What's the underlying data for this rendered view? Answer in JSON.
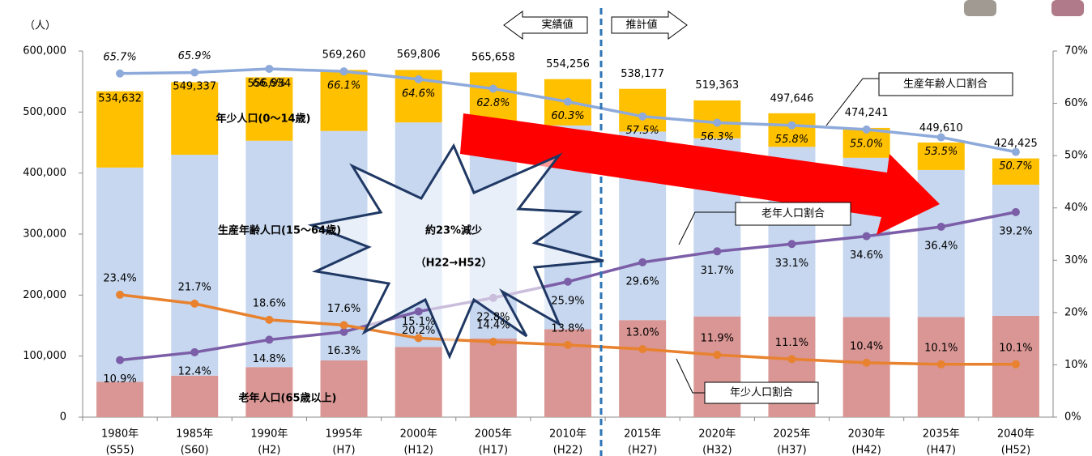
{
  "chart_data": {
    "type": "bar",
    "y_unit": "（人）",
    "categories": [
      "1980年",
      "1985年",
      "1990年",
      "1995年",
      "2000年",
      "2005年",
      "2010年",
      "2015年",
      "2020年",
      "2025年",
      "2030年",
      "2035年",
      "2040年"
    ],
    "era_labels": [
      "(S55)",
      "(S60)",
      "(H2)",
      "(H7)",
      "(H12)",
      "(H17)",
      "(H22)",
      "(H27)",
      "(H32)",
      "(H37)",
      "(H42)",
      "(H47)",
      "(H52)"
    ],
    "ylim": [
      0,
      600000
    ],
    "yticks": [
      0,
      {
        "value": 100000,
        "label": "100,000"
      },
      {
        "value": 200000,
        "label": "200,000"
      },
      {
        "value": 300000,
        "label": "300,000"
      },
      {
        "value": 400000,
        "label": "400,000"
      },
      {
        "value": 500000,
        "label": "500,000"
      },
      {
        "value": 600000,
        "label": "600,000"
      }
    ],
    "y2lim": [
      0,
      70
    ],
    "y2ticks": [
      {
        "value": 0,
        "label": "0%"
      },
      {
        "value": 10,
        "label": "10%"
      },
      {
        "value": 20,
        "label": "20%"
      },
      {
        "value": 30,
        "label": "30%"
      },
      {
        "value": 40,
        "label": "40%"
      },
      {
        "value": 50,
        "label": "50%"
      },
      {
        "value": 60,
        "label": "60%"
      },
      {
        "value": 70,
        "label": "70%"
      }
    ],
    "totals": [
      534632,
      549337,
      556934,
      569260,
      569806,
      565658,
      554256,
      538177,
      519363,
      497646,
      474241,
      449610,
      424425
    ],
    "total_labels": [
      "534,632",
      "549,337",
      "556,934",
      "569,260",
      "569,806",
      "565,658",
      "554,256",
      "538,177",
      "519,363",
      "497,646",
      "474,241",
      "449,610",
      "424,425"
    ],
    "series": [
      {
        "name": "老年人口(65歳以上)",
        "type": "bar",
        "color": "#d99694",
        "values": [
          58000,
          68000,
          82000,
          93000,
          115000,
          129000,
          144000,
          159000,
          165000,
          165000,
          164000,
          164000,
          166000
        ]
      },
      {
        "name": "生産年齢人口(15～64歳)",
        "type": "bar",
        "color": "#c6d7ef",
        "values": [
          351000,
          362000,
          371000,
          376000,
          368000,
          355000,
          334000,
          309000,
          292000,
          278000,
          261000,
          241000,
          215000
        ]
      },
      {
        "name": "年少人口(0～14歳)",
        "type": "bar",
        "color": "#ffc000",
        "values": [
          125000,
          119000,
          104000,
          100000,
          86000,
          81000,
          76000,
          70000,
          62000,
          55000,
          49000,
          45000,
          43000
        ]
      },
      {
        "name": "生産年齢人口割合",
        "type": "line",
        "axis": "y2",
        "color": "#8eaadb",
        "values": [
          65.7,
          65.9,
          66.6,
          66.1,
          64.6,
          62.8,
          60.3,
          57.5,
          56.3,
          55.8,
          55.0,
          53.5,
          50.7
        ],
        "value_labels": [
          "65.7%",
          "65.9%",
          "66.6%",
          "66.1%",
          "64.6%",
          "62.8%",
          "60.3%",
          "57.5%",
          "56.3%",
          "55.8%",
          "55.0%",
          "53.5%",
          "50.7%"
        ]
      },
      {
        "name": "老年人口割合",
        "type": "line",
        "axis": "y2",
        "color": "#7b5ea7",
        "values": [
          10.9,
          12.4,
          14.8,
          16.3,
          20.2,
          22.8,
          25.9,
          29.6,
          31.7,
          33.1,
          34.6,
          36.4,
          39.2
        ],
        "value_labels": [
          "10.9%",
          "12.4%",
          "14.8%",
          "16.3%",
          "20.2%",
          "22.8%",
          "25.9%",
          "29.6%",
          "31.7%",
          "33.1%",
          "34.6%",
          "36.4%",
          "39.2%"
        ]
      },
      {
        "name": "年少人口割合",
        "type": "line",
        "axis": "y2",
        "color": "#e8822f",
        "values": [
          23.4,
          21.7,
          18.6,
          17.6,
          15.1,
          14.4,
          13.8,
          13.0,
          11.9,
          11.1,
          10.4,
          10.1,
          10.1
        ],
        "value_labels": [
          "23.4%",
          "21.7%",
          "18.6%",
          "17.6%",
          "15.1%",
          "14.4%",
          "13.8%",
          "13.0%",
          "11.9%",
          "11.1%",
          "10.4%",
          "10.1%",
          "10.1%"
        ]
      }
    ],
    "annotations": {
      "actual": "実績値",
      "projected": "推計値",
      "decline": "約23%減少",
      "decline_period": "（H22→H52）"
    }
  }
}
